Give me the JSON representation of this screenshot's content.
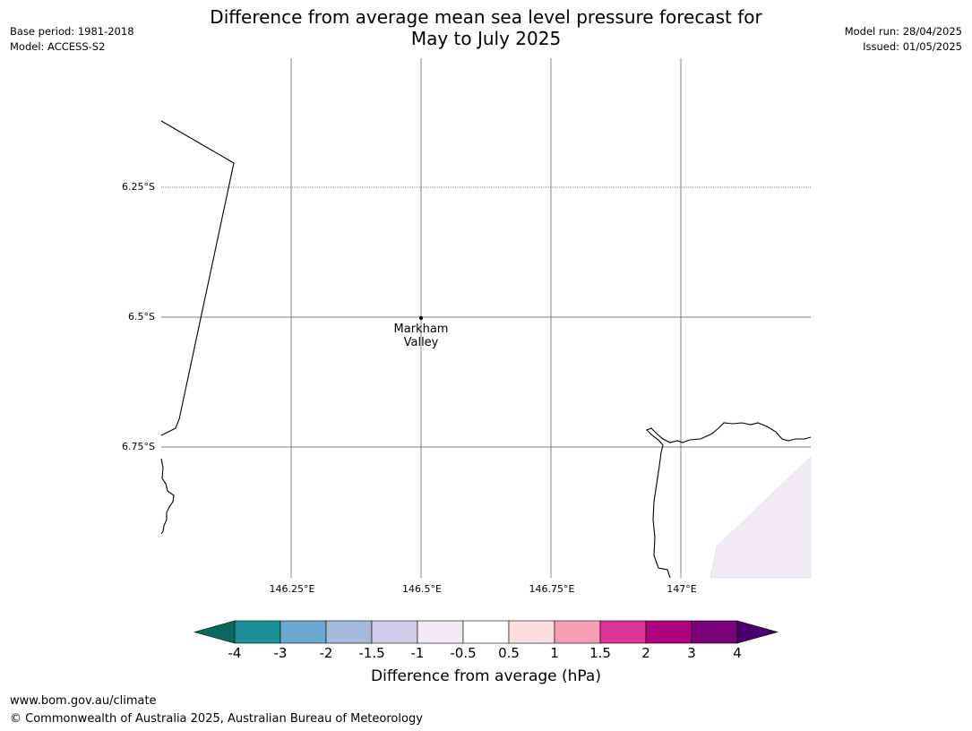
{
  "header": {
    "title_line1": "Difference from average mean sea level pressure forecast for",
    "title_line2": "May to July 2025",
    "base_period": "Base period: 1981-2018",
    "model": "Model: ACCESS-S2",
    "model_run": "Model run: 28/04/2025",
    "issued": "Issued: 01/05/2025"
  },
  "map": {
    "lat_labels": [
      "6.25°S",
      "6.5°S",
      "6.75°S"
    ],
    "lon_labels": [
      "146.25°E",
      "146.5°E",
      "146.75°E",
      "147°E"
    ],
    "place": {
      "name_line1": "Markham",
      "name_line2": "Valley"
    },
    "land_color": "#ffffff",
    "shaded_region_color": "#f0ebf2"
  },
  "colorbar": {
    "ticks": [
      "-4",
      "-3",
      "-2",
      "-1.5",
      "-1",
      "-0.5",
      "0.5",
      "1",
      "1.5",
      "2",
      "3",
      "4"
    ],
    "colors": [
      "#086a5c",
      "#1b9197",
      "#69a8cf",
      "#a6b9da",
      "#d0cee6",
      "#f0ebf2",
      "#ffffff",
      "#fddddd",
      "#f99fb5",
      "#dd3497",
      "#ad017e",
      "#7a0177",
      "#49006a"
    ],
    "label": "Difference from average (hPa)"
  },
  "footer": {
    "url": "www.bom.gov.au/climate",
    "copyright": "© Commonwealth of Australia 2025, Australian Bureau of Meteorology"
  }
}
